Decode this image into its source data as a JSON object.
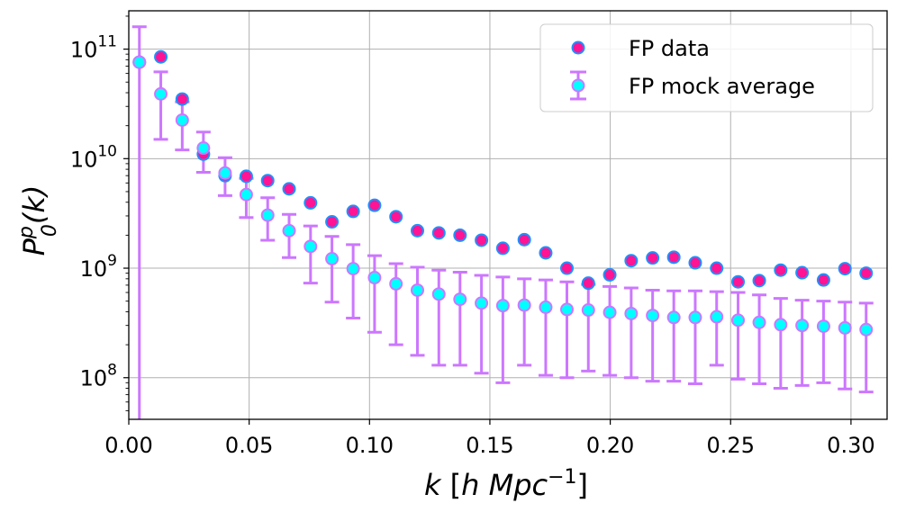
{
  "chart_data": {
    "type": "scatter",
    "xlabel": {
      "var": "k",
      "open": " [",
      "h": "h",
      "unit": " Mpc",
      "exp": "−1",
      "close": "]"
    },
    "ylabel": {
      "main": "P",
      "sup": "p",
      "sub": "0",
      "rest": "(k)"
    },
    "xlim": [
      0.0,
      0.315
    ],
    "ylim_log10": [
      7.62,
      11.35
    ],
    "grid": true,
    "legend_position": "top-right",
    "xticks": [
      {
        "value": 0.0,
        "label": "0.00"
      },
      {
        "value": 0.05,
        "label": "0.05"
      },
      {
        "value": 0.1,
        "label": "0.10"
      },
      {
        "value": 0.15,
        "label": "0.15"
      },
      {
        "value": 0.2,
        "label": "0.20"
      },
      {
        "value": 0.25,
        "label": "0.25"
      },
      {
        "value": 0.3,
        "label": "0.30"
      }
    ],
    "yticks": [
      {
        "log10": 8,
        "base": "10",
        "exp": "8"
      },
      {
        "log10": 9,
        "base": "10",
        "exp": "9"
      },
      {
        "log10": 10,
        "base": "10",
        "exp": "10"
      },
      {
        "log10": 11,
        "base": "10",
        "exp": "11"
      }
    ],
    "series": [
      {
        "name": "FP data",
        "fill": "#ff1493",
        "edge": "#1e90ff",
        "x": [
          0.0044,
          0.0133,
          0.0222,
          0.031,
          0.04,
          0.0488,
          0.0577,
          0.0666,
          0.0755,
          0.0844,
          0.0932,
          0.1021,
          0.111,
          0.1199,
          0.1288,
          0.1376,
          0.1465,
          0.1554,
          0.1643,
          0.1732,
          0.182,
          0.1909,
          0.1998,
          0.2087,
          0.2176,
          0.2264,
          0.2353,
          0.2442,
          0.2531,
          0.2619,
          0.2708,
          0.2797,
          0.2886,
          0.2975,
          0.3063
        ],
        "y": [
          76000000000.0,
          85000000000.0,
          35000000000.0,
          11000000000.0,
          7000000000.0,
          6900000000.0,
          6300000000.0,
          5300000000.0,
          3950000000.0,
          2650000000.0,
          3300000000.0,
          3750000000.0,
          2950000000.0,
          2200000000.0,
          2100000000.0,
          2000000000.0,
          1800000000.0,
          1520000000.0,
          1820000000.0,
          1380000000.0,
          1000000000.0,
          730000000.0,
          870000000.0,
          1170000000.0,
          1240000000.0,
          1260000000.0,
          1120000000.0,
          1000000000.0,
          750000000.0,
          770000000.0,
          960000000.0,
          910000000.0,
          780000000.0,
          990000000.0,
          900000000.0
        ]
      },
      {
        "name": "FP mock average",
        "fill": "#00ffff",
        "edge": "#cc77ff",
        "x": [
          0.0044,
          0.0133,
          0.0222,
          0.031,
          0.04,
          0.0488,
          0.0577,
          0.0666,
          0.0755,
          0.0844,
          0.0932,
          0.1021,
          0.111,
          0.1199,
          0.1288,
          0.1376,
          0.1465,
          0.1554,
          0.1643,
          0.1732,
          0.182,
          0.1909,
          0.1998,
          0.2087,
          0.2176,
          0.2264,
          0.2353,
          0.2442,
          0.2531,
          0.2619,
          0.2708,
          0.2797,
          0.2886,
          0.2975,
          0.3063
        ],
        "y": [
          76000000000.0,
          39000000000.0,
          22500000000.0,
          12500000000.0,
          7400000000.0,
          4700000000.0,
          3050000000.0,
          2200000000.0,
          1580000000.0,
          1220000000.0,
          990000000.0,
          820000000.0,
          720000000.0,
          630000000.0,
          580000000.0,
          520000000.0,
          480000000.0,
          455000000.0,
          460000000.0,
          440000000.0,
          420000000.0,
          415000000.0,
          395000000.0,
          385000000.0,
          370000000.0,
          355000000.0,
          355000000.0,
          360000000.0,
          335000000.0,
          320000000.0,
          305000000.0,
          300000000.0,
          295000000.0,
          285000000.0,
          275000000.0
        ],
        "err_low": [
          40000000.0,
          15000000000.0,
          12000000000.0,
          7500000000.0,
          4600000000.0,
          2900000000.0,
          1800000000.0,
          1250000000.0,
          730000000.0,
          490000000.0,
          350000000.0,
          260000000.0,
          200000000.0,
          160000000.0,
          130000000.0,
          130000000.0,
          110000000.0,
          90000000.0,
          130000000.0,
          105000000.0,
          100000000.0,
          115000000.0,
          105000000.0,
          100000000.0,
          93000000.0,
          93000000.0,
          88000000.0,
          130000000.0,
          97000000.0,
          88000000.0,
          80000000.0,
          85000000.0,
          90000000.0,
          79000000.0,
          74000000.0
        ],
        "err_high": [
          160000000000.0,
          62000000000.0,
          33000000000.0,
          17500000000.0,
          10200000000.0,
          6600000000.0,
          4400000000.0,
          3100000000.0,
          2430000000.0,
          1950000000.0,
          1640000000.0,
          1300000000.0,
          1100000000.0,
          1020000000.0,
          960000000.0,
          920000000.0,
          860000000.0,
          830000000.0,
          800000000.0,
          780000000.0,
          750000000.0,
          710000000.0,
          680000000.0,
          660000000.0,
          630000000.0,
          620000000.0,
          620000000.0,
          610000000.0,
          600000000.0,
          570000000.0,
          530000000.0,
          510000000.0,
          500000000.0,
          490000000.0,
          480000000.0
        ]
      }
    ]
  }
}
